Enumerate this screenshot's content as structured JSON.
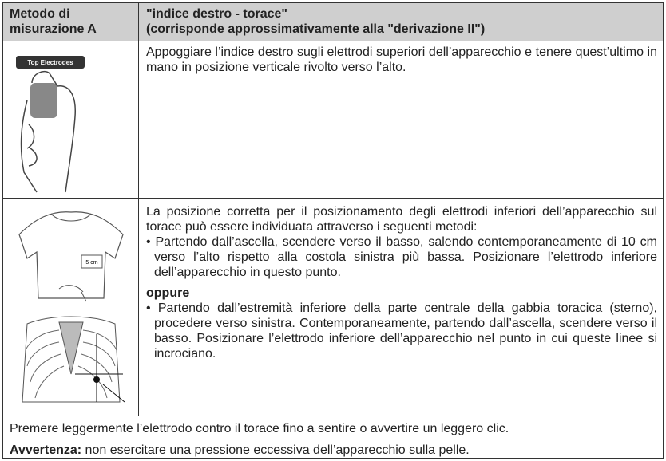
{
  "header": {
    "left": "Metodo di misurazione A",
    "right": [
      "\"indice destro - torace\"",
      "(corrisponde approssimativamente alla \"derivazione II\")"
    ]
  },
  "rows": [
    {
      "image_label": "Top Electrodes",
      "text": "Appoggiare l’indice destro sugli elettrodi superiori dell’apparecchio e tenere quest’ultimo in mano in posizione verticale rivolto verso l’alto."
    },
    {
      "image_label": "5 cm",
      "intro": "La posizione corretta per il posizionamento degli elettrodi inferiori dell’apparecchio sul torace può essere individuata attraverso i seguenti metodi:",
      "bullet_1": "• Partendo dall’ascella, scendere verso il basso, salendo contemporaneamente di 10 cm verso l’alto rispetto alla costola sinistra più bassa. Posizionare l’elettrodo inferiore dell’apparecchio in questo punto.",
      "alternative": "oppure",
      "bullet_2": "• Partendo dall’estremità inferiore della parte centrale della gabbia toracica (sterno), procedere verso sinistra. Contemporaneamente, partendo dall’ascella, scendere verso il basso. Posizionare l’elettrodo inferiore dell’apparecchio nel punto in cui queste linee si incrociano."
    }
  ],
  "footer": {
    "note": "Premere leggermente l’elettrodo contro il torace fino a sentire o avvertire un leggero clic.",
    "warning_label": "Avvertenza:",
    "warning_text": " non esercitare una pressione eccessiva dell’apparecchio sulla pelle."
  }
}
